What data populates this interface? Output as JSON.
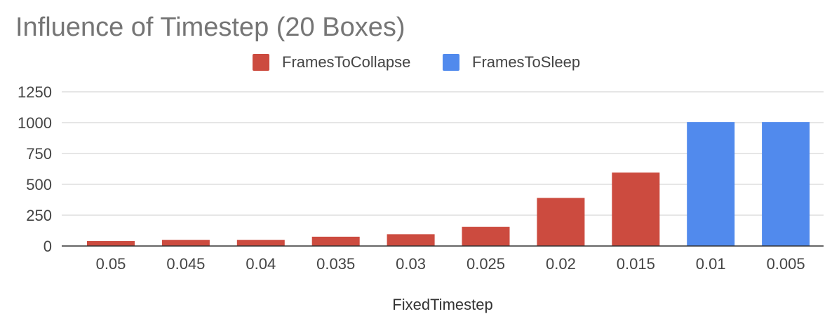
{
  "chart_data": {
    "type": "bar",
    "title": "Influence of Timestep (20 Boxes)",
    "xlabel": "FixedTimestep",
    "ylabel": "",
    "categories": [
      "0.05",
      "0.045",
      "0.04",
      "0.035",
      "0.03",
      "0.025",
      "0.02",
      "0.015",
      "0.01",
      "0.005"
    ],
    "ylim": [
      0,
      1250
    ],
    "yticks": [
      "0",
      "250",
      "500",
      "750",
      "1000",
      "1250"
    ],
    "grid": true,
    "legend_position": "top",
    "series": [
      {
        "name": "FramesToCollapse",
        "color": "#cc4b3f",
        "values": [
          40,
          50,
          50,
          75,
          95,
          155,
          390,
          595,
          null,
          null
        ]
      },
      {
        "name": "FramesToSleep",
        "color": "#518aed",
        "values": [
          null,
          null,
          null,
          null,
          null,
          null,
          null,
          null,
          1005,
          1005
        ]
      }
    ]
  }
}
